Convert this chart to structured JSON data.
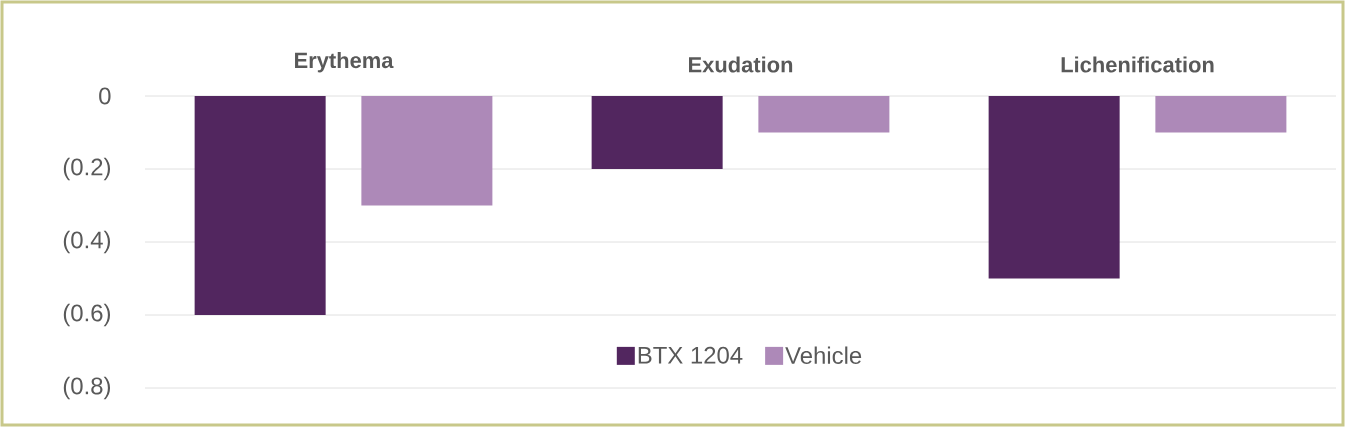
{
  "chart_data": {
    "type": "bar",
    "categories": [
      "Erythema",
      "Exudation",
      "Lichenification"
    ],
    "series": [
      {
        "name": "BTX 1204",
        "color": "#52265f",
        "values": [
          -0.6,
          -0.2,
          -0.5
        ]
      },
      {
        "name": "Vehicle",
        "color": "#ad89b8",
        "values": [
          -0.3,
          -0.1,
          -0.1
        ]
      }
    ],
    "ylim": [
      -0.8,
      0
    ],
    "yticks": [
      {
        "value": 0,
        "label": "0"
      },
      {
        "value": -0.2,
        "label": "(0.2)"
      },
      {
        "value": -0.4,
        "label": "(0.4)"
      },
      {
        "value": -0.6,
        "label": "(0.6)"
      },
      {
        "value": -0.8,
        "label": "(0.8)"
      }
    ],
    "grid": "y",
    "legend": "bottom"
  }
}
